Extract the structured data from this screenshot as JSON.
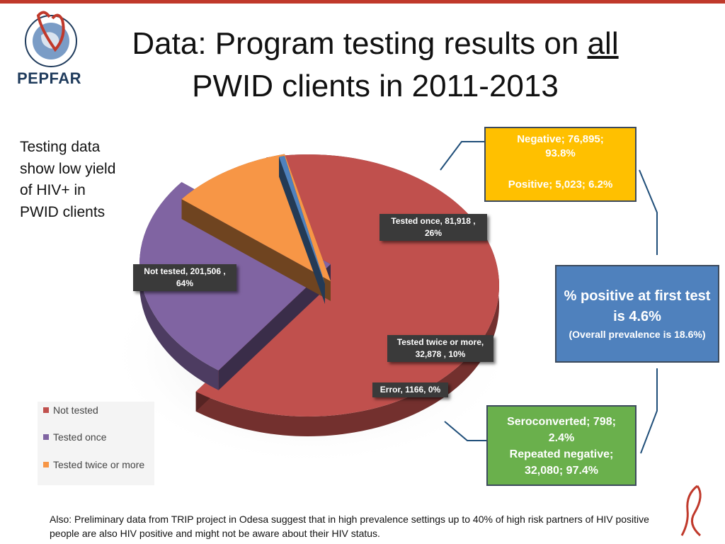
{
  "slide": {
    "title_prefix": "Data: Program testing results on ",
    "title_underlined": "all",
    "title_line2": "PWID clients in 2011-2013",
    "logo_text": "PEPFAR",
    "side_note": "Testing data show low yield of HIV+ in PWID clients",
    "footnote": "Also: Preliminary data from TRIP project in Odesa suggest that in high prevalence settings up to 40% of high risk partners of HIV positive people are also HIV positive and might not be aware about their HIV status."
  },
  "callouts": {
    "negative_line1": "Negative; 76,895;",
    "negative_line2": "93.8%",
    "positive_line": "Positive; 5,023; 6.2%",
    "pct_main": "% positive at first test is 4.6%",
    "pct_sub": "(Overall prevalence is 18.6%)",
    "sero_line1": "Seroconverted; 798;",
    "sero_line2": "2.4%",
    "sero_line3": "Repeated negative;",
    "sero_line4": "32,080; 97.4%"
  },
  "data_labels": {
    "not_tested": "Not tested,  201,506 , 64%",
    "tested_once": "Tested once,  81,918 , 26%",
    "tested_twice": "Tested twice or more, 32,878 , 10%",
    "error": "Error, 1166, 0%"
  },
  "legend": [
    {
      "label": "Not tested",
      "color": "#c0504d"
    },
    {
      "label": "Tested once",
      "color": "#8064a2"
    },
    {
      "label": "Tested twice or more",
      "color": "#f79646"
    }
  ],
  "colors": {
    "not_tested": "#c0504d",
    "tested_once": "#8064a2",
    "tested_twice": "#f79646",
    "error": "#4f81bd",
    "negative_box": "#ffc000",
    "pct_box": "#4f81bd",
    "sero_box": "#6ab04c"
  },
  "chart_data": {
    "type": "pie",
    "categories": [
      "Not tested",
      "Tested once",
      "Tested twice or more",
      "Error"
    ],
    "values": [
      201506,
      81918,
      32878,
      1166
    ],
    "percent_labels": [
      "64%",
      "26%",
      "10%",
      "0%"
    ],
    "legend_position": "bottom-left",
    "style": "3d-exploded"
  }
}
